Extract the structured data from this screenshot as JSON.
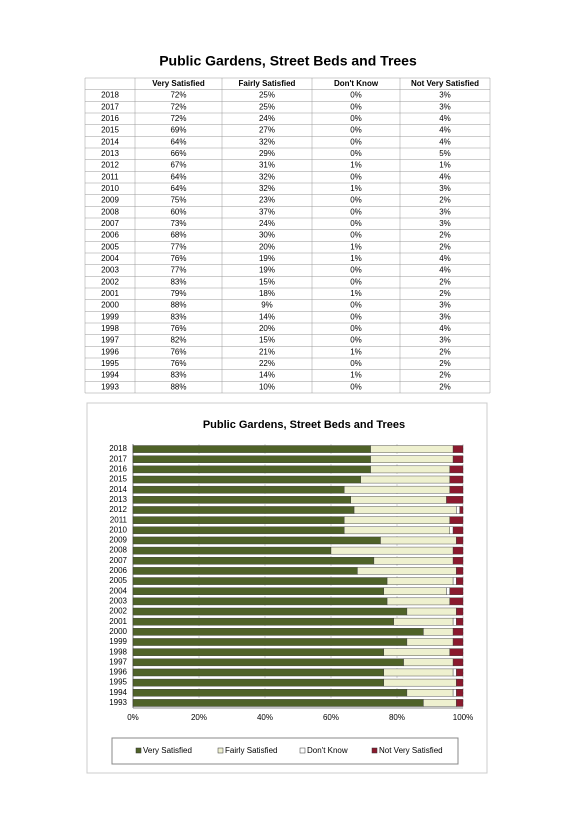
{
  "title": "Public Gardens, Street Beds and Trees",
  "chart_data": {
    "type": "bar",
    "orientation": "horizontal",
    "stacked": true,
    "title": "Public Gardens, Street Beds and Trees",
    "categories": [
      "2018",
      "2017",
      "2016",
      "2015",
      "2014",
      "2013",
      "2012",
      "2011",
      "2010",
      "2009",
      "2008",
      "2007",
      "2006",
      "2005",
      "2004",
      "2003",
      "2002",
      "2001",
      "2000",
      "1999",
      "1998",
      "1997",
      "1996",
      "1995",
      "1994",
      "1993"
    ],
    "series": [
      {
        "name": "Very Satisfied",
        "color": "#4f6228",
        "values": [
          72,
          72,
          72,
          69,
          64,
          66,
          67,
          64,
          64,
          75,
          60,
          73,
          68,
          77,
          76,
          77,
          83,
          79,
          88,
          83,
          76,
          82,
          76,
          76,
          83,
          88
        ],
        "value_labels": [
          "72%",
          "72%",
          "72%",
          "69%",
          "64%",
          "66%",
          "67%",
          "64%",
          "64%",
          "75%",
          "60%",
          "73%",
          "68%",
          "77%",
          "76%",
          "77%",
          "83%",
          "79%",
          "88%",
          "83%",
          "76%",
          "82%",
          "76%",
          "76%",
          "83%",
          "88%"
        ]
      },
      {
        "name": "Fairly Satisfied",
        "color": "#eef0cf",
        "values": [
          25,
          25,
          24,
          27,
          32,
          29,
          31,
          32,
          32,
          23,
          37,
          24,
          30,
          20,
          19,
          19,
          15,
          18,
          9,
          14,
          20,
          15,
          21,
          22,
          14,
          10
        ],
        "value_labels": [
          "25%",
          "25%",
          "24%",
          "27%",
          "32%",
          "29%",
          "31%",
          "32%",
          "32%",
          "23%",
          "37%",
          "24%",
          "30%",
          "20%",
          "19%",
          "19%",
          "15%",
          "18%",
          "9%",
          "14%",
          "20%",
          "15%",
          "21%",
          "22%",
          "14%",
          "10%"
        ]
      },
      {
        "name": "Don't Know",
        "color": "#ffffff",
        "values": [
          0,
          0,
          0,
          0,
          0,
          0,
          1,
          0,
          1,
          0,
          0,
          0,
          0,
          1,
          1,
          0,
          0,
          1,
          0,
          0,
          0,
          0,
          1,
          0,
          1,
          0
        ],
        "value_labels": [
          "0%",
          "0%",
          "0%",
          "0%",
          "0%",
          "0%",
          "1%",
          "0%",
          "1%",
          "0%",
          "0%",
          "0%",
          "0%",
          "1%",
          "1%",
          "0%",
          "0%",
          "1%",
          "0%",
          "0%",
          "0%",
          "0%",
          "1%",
          "0%",
          "1%",
          "0%"
        ]
      },
      {
        "name": "Not Very Satisfied",
        "color": "#8b1a2e",
        "values": [
          3,
          3,
          4,
          4,
          4,
          5,
          1,
          4,
          3,
          2,
          3,
          3,
          2,
          2,
          4,
          4,
          2,
          2,
          3,
          3,
          4,
          3,
          2,
          2,
          2,
          2
        ],
        "value_labels": [
          "3%",
          "3%",
          "4%",
          "4%",
          "4%",
          "5%",
          "1%",
          "4%",
          "3%",
          "2%",
          "3%",
          "3%",
          "2%",
          "2%",
          "4%",
          "4%",
          "2%",
          "2%",
          "3%",
          "3%",
          "4%",
          "3%",
          "2%",
          "2%",
          "2%",
          "2%"
        ]
      }
    ],
    "xlim": [
      0,
      100
    ],
    "xticks": [
      {
        "value": 0,
        "label": "0%"
      },
      {
        "value": 20,
        "label": "20%"
      },
      {
        "value": 40,
        "label": "40%"
      },
      {
        "value": 60,
        "label": "60%"
      },
      {
        "value": 80,
        "label": "80%"
      },
      {
        "value": 100,
        "label": "100%"
      }
    ],
    "grid": true,
    "legend": "bottom"
  }
}
